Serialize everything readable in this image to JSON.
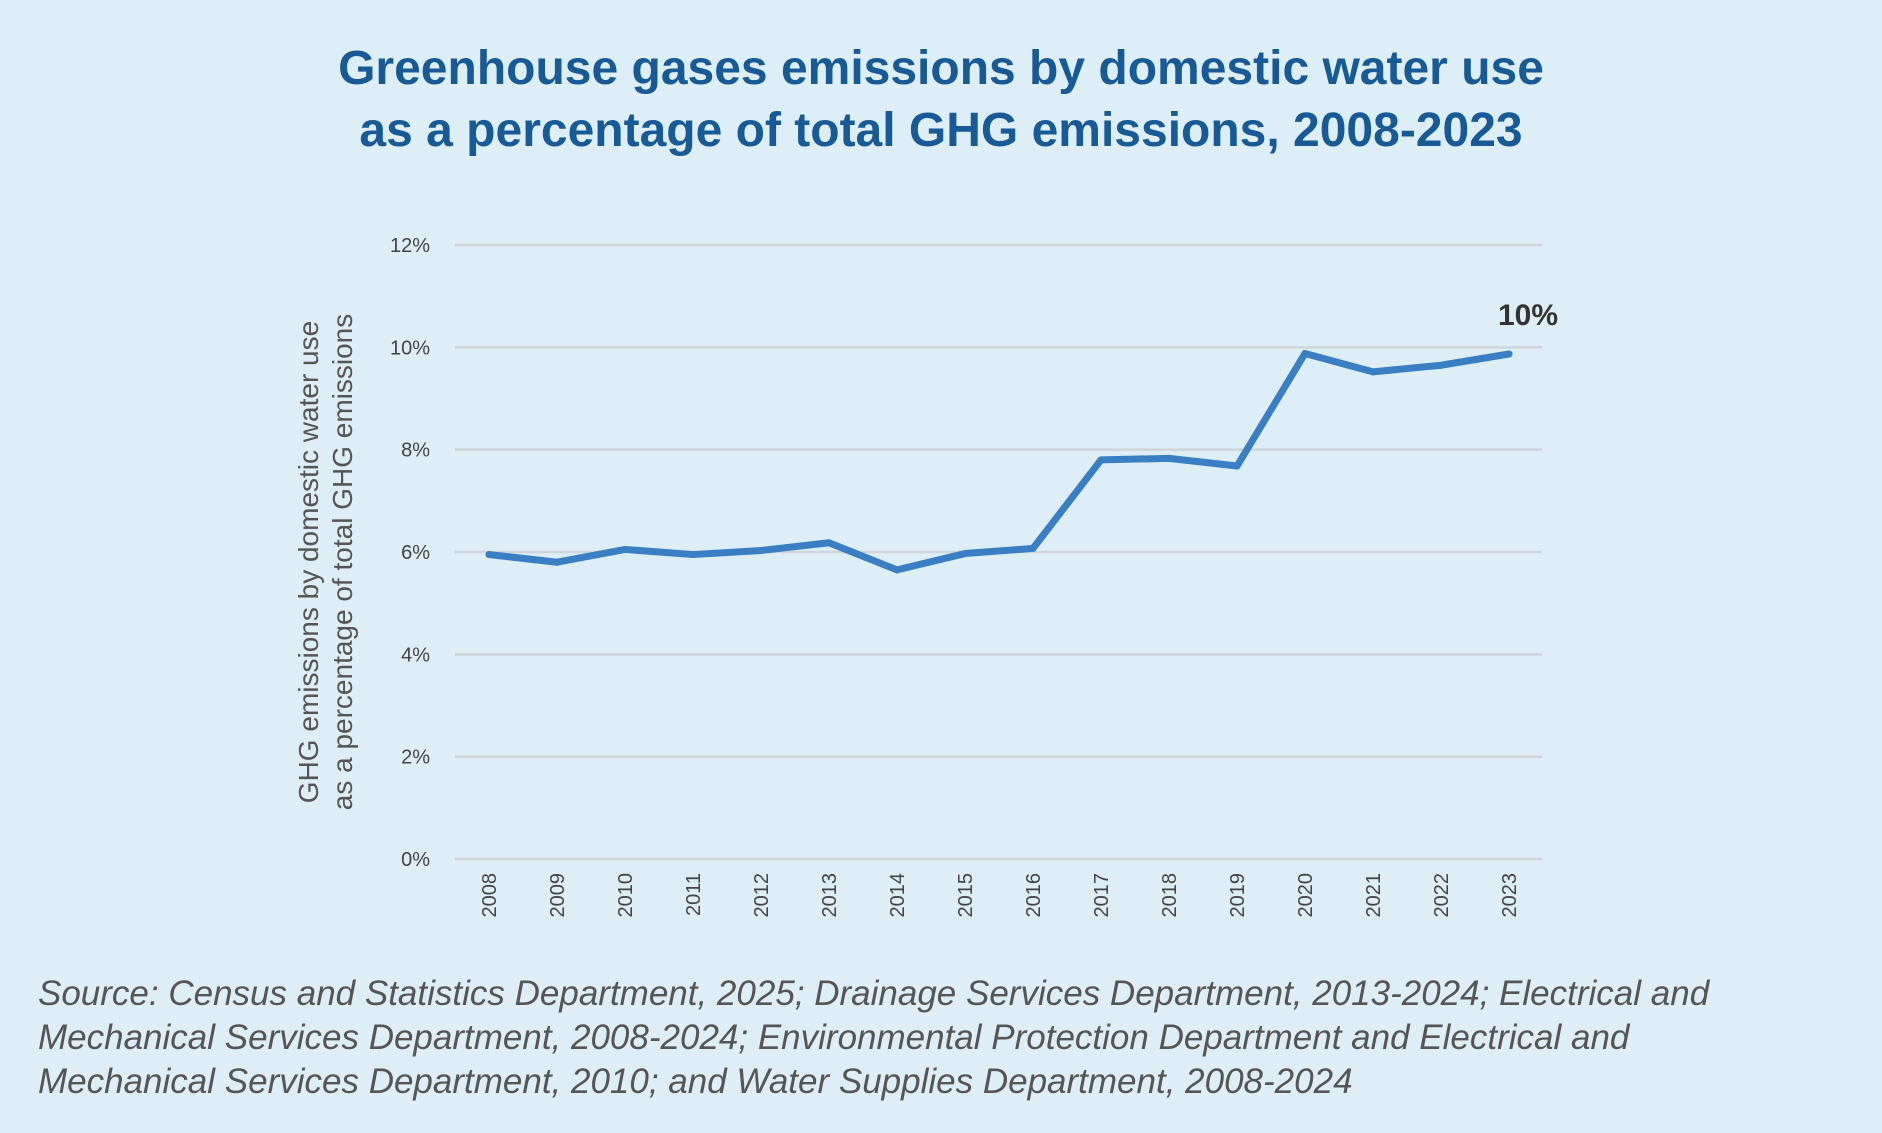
{
  "header": {
    "title_line1": "Greenhouse gases emissions by domestic water use",
    "title_line2": "as a percentage of total GHG emissions, 2008-2023"
  },
  "chart_data": {
    "type": "line",
    "title": "Greenhouse gases emissions by domestic water use as a percentage of total GHG emissions, 2008-2023",
    "xlabel": "",
    "ylabel": "GHG emissions by domestic water use as a percentage of total GHG emissions",
    "ylabel_lines": [
      "GHG emissions by domestic water use",
      "as a percentage of total GHG emissions"
    ],
    "categories": [
      "2008",
      "2009",
      "2010",
      "2011",
      "2012",
      "2013",
      "2014",
      "2015",
      "2016",
      "2017",
      "2018",
      "2019",
      "2020",
      "2021",
      "2022",
      "2023"
    ],
    "series": [
      {
        "values": [
          5.95,
          5.8,
          6.05,
          5.95,
          6.03,
          6.18,
          5.65,
          5.97,
          6.07,
          7.8,
          7.83,
          7.68,
          9.88,
          9.52,
          9.65,
          9.87
        ]
      }
    ],
    "ylim": [
      0,
      12
    ],
    "yticks": [
      0,
      2,
      4,
      6,
      8,
      10,
      12
    ],
    "ytick_labels": [
      "0%",
      "2%",
      "4%",
      "6%",
      "8%",
      "10%",
      "12%"
    ],
    "grid": true,
    "annotations": [
      {
        "category": "2023",
        "text": "10%"
      }
    ],
    "colors": {
      "line": "#3a7fc4",
      "grid": "#cfd6da",
      "tick_text": "#444444",
      "annotation": "#333333"
    }
  },
  "footer": {
    "source_line1": "Source: Census and Statistics Department, 2025; Drainage Services Department, 2013-2024; Electrical and",
    "source_line2": "Mechanical Services Department, 2008-2024; Environmental Protection Department and Electrical and",
    "source_line3": "Mechanical Services Department, 2010; and Water Supplies Department, 2008-2024"
  }
}
